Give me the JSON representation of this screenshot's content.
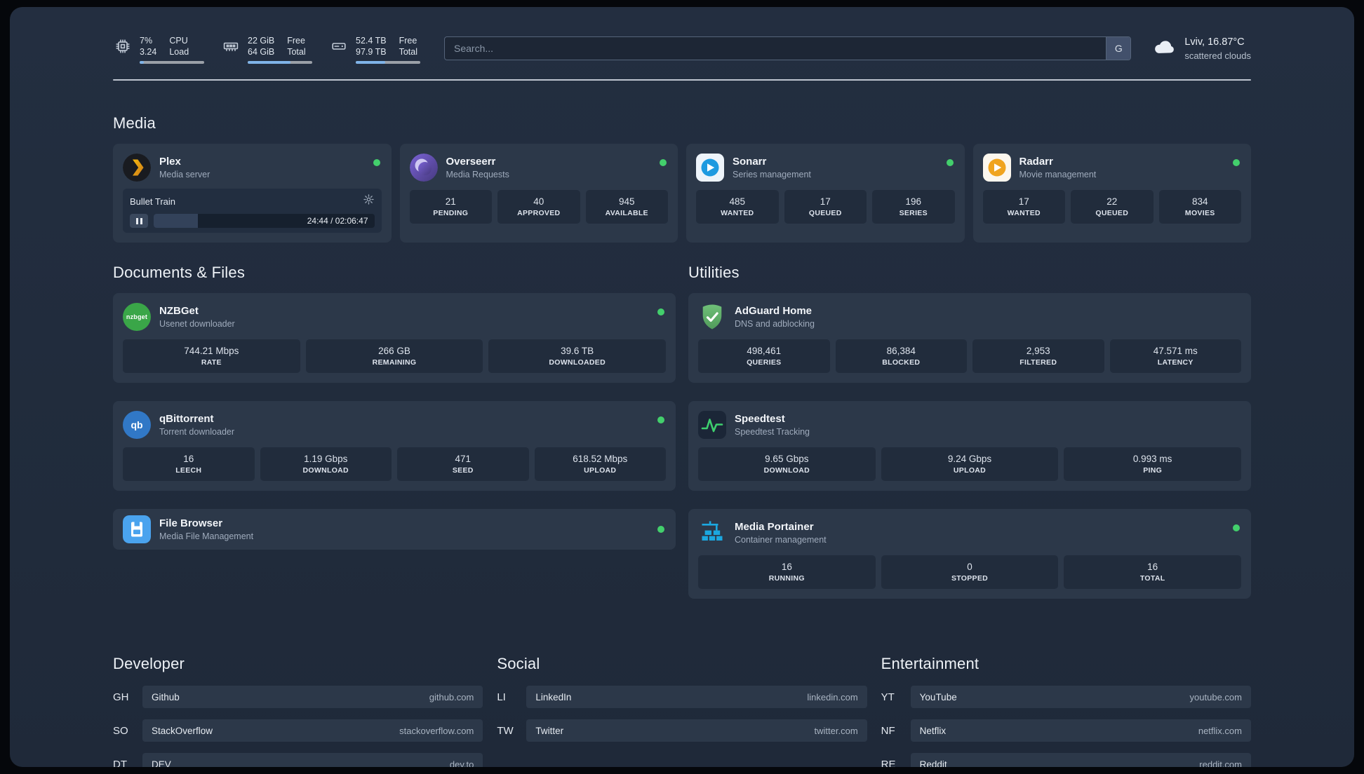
{
  "topbar": {
    "cpu": {
      "value1": "7%",
      "value2": "3.24",
      "label1": "CPU",
      "label2": "Load",
      "bar": 7
    },
    "ram": {
      "value1": "22 GiB",
      "value2": "64 GiB",
      "label1": "Free",
      "label2": "Total",
      "bar": 66
    },
    "disk": {
      "value1": "52.4 TB",
      "value2": "97.9 TB",
      "label1": "Free",
      "label2": "Total",
      "bar": 46
    },
    "search": {
      "placeholder": "Search...",
      "engine": "G"
    },
    "weather": {
      "location": "Lviv, 16.87°C",
      "condition": "scattered clouds"
    }
  },
  "sections": {
    "media": {
      "title": "Media"
    },
    "documents": {
      "title": "Documents & Files"
    },
    "utilities": {
      "title": "Utilities"
    },
    "developer": {
      "title": "Developer"
    },
    "social": {
      "title": "Social"
    },
    "entertainment": {
      "title": "Entertainment"
    }
  },
  "media": {
    "plex": {
      "name": "Plex",
      "desc": "Media server",
      "player": {
        "track": "Bullet Train",
        "time": "24:44 / 02:06:47",
        "progress": 20
      }
    },
    "overseerr": {
      "name": "Overseerr",
      "desc": "Media Requests",
      "stats": [
        {
          "value": "21",
          "label": "PENDING"
        },
        {
          "value": "40",
          "label": "APPROVED"
        },
        {
          "value": "945",
          "label": "AVAILABLE"
        }
      ]
    },
    "sonarr": {
      "name": "Sonarr",
      "desc": "Series management",
      "stats": [
        {
          "value": "485",
          "label": "WANTED"
        },
        {
          "value": "17",
          "label": "QUEUED"
        },
        {
          "value": "196",
          "label": "SERIES"
        }
      ]
    },
    "radarr": {
      "name": "Radarr",
      "desc": "Movie management",
      "stats": [
        {
          "value": "17",
          "label": "WANTED"
        },
        {
          "value": "22",
          "label": "QUEUED"
        },
        {
          "value": "834",
          "label": "MOVIES"
        }
      ]
    }
  },
  "documents": {
    "nzbget": {
      "name": "NZBGet",
      "desc": "Usenet downloader",
      "stats": [
        {
          "value": "744.21 Mbps",
          "label": "RATE"
        },
        {
          "value": "266 GB",
          "label": "REMAINING"
        },
        {
          "value": "39.6 TB",
          "label": "DOWNLOADED"
        }
      ]
    },
    "qbittorrent": {
      "name": "qBittorrent",
      "desc": "Torrent downloader",
      "stats": [
        {
          "value": "16",
          "label": "LEECH"
        },
        {
          "value": "1.19 Gbps",
          "label": "DOWNLOAD"
        },
        {
          "value": "471",
          "label": "SEED"
        },
        {
          "value": "618.52 Mbps",
          "label": "UPLOAD"
        }
      ]
    },
    "filebrowser": {
      "name": "File Browser",
      "desc": "Media File Management"
    }
  },
  "utilities": {
    "adguard": {
      "name": "AdGuard Home",
      "desc": "DNS and adblocking",
      "stats": [
        {
          "value": "498,461",
          "label": "QUERIES"
        },
        {
          "value": "86,384",
          "label": "BLOCKED"
        },
        {
          "value": "2,953",
          "label": "FILTERED"
        },
        {
          "value": "47.571 ms",
          "label": "LATENCY"
        }
      ]
    },
    "speedtest": {
      "name": "Speedtest",
      "desc": "Speedtest Tracking",
      "stats": [
        {
          "value": "9.65 Gbps",
          "label": "DOWNLOAD"
        },
        {
          "value": "9.24 Gbps",
          "label": "UPLOAD"
        },
        {
          "value": "0.993 ms",
          "label": "PING"
        }
      ]
    },
    "portainer": {
      "name": "Media Portainer",
      "desc": "Container management",
      "stats": [
        {
          "value": "16",
          "label": "RUNNING"
        },
        {
          "value": "0",
          "label": "STOPPED"
        },
        {
          "value": "16",
          "label": "TOTAL"
        }
      ]
    }
  },
  "bookmarks": {
    "developer": [
      {
        "abbr": "GH",
        "name": "Github",
        "url": "github.com"
      },
      {
        "abbr": "SO",
        "name": "StackOverflow",
        "url": "stackoverflow.com"
      },
      {
        "abbr": "DT",
        "name": "DEV",
        "url": "dev.to"
      }
    ],
    "social": [
      {
        "abbr": "LI",
        "name": "LinkedIn",
        "url": "linkedin.com"
      },
      {
        "abbr": "TW",
        "name": "Twitter",
        "url": "twitter.com"
      }
    ],
    "entertainment": [
      {
        "abbr": "YT",
        "name": "YouTube",
        "url": "youtube.com"
      },
      {
        "abbr": "NF",
        "name": "Netflix",
        "url": "netflix.com"
      },
      {
        "abbr": "RE",
        "name": "Reddit",
        "url": "reddit.com"
      }
    ]
  }
}
